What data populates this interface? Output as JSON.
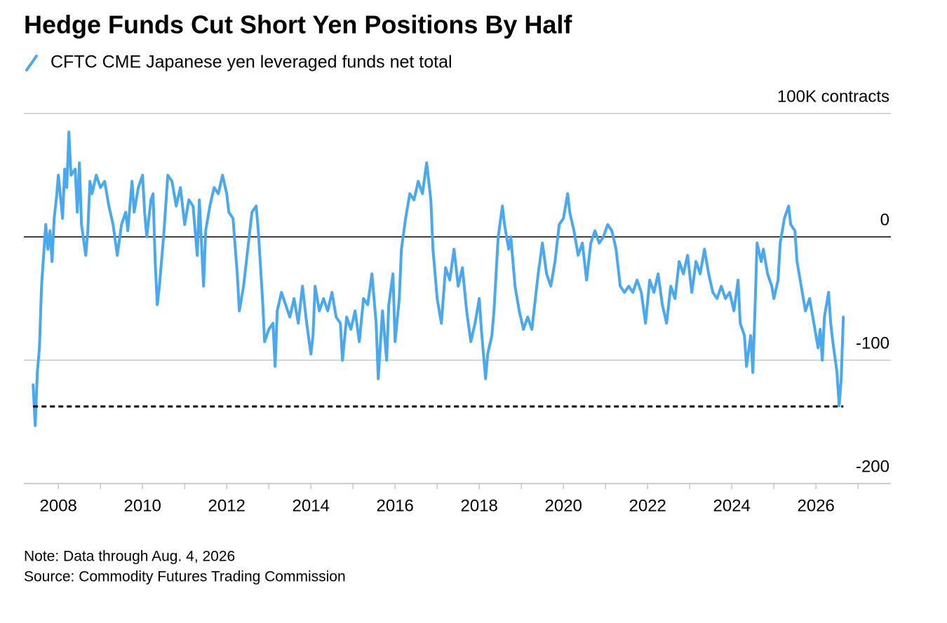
{
  "chart_data": {
    "type": "line",
    "title": "Hedge Funds Cut Short Yen Positions By Half",
    "note": "Note: Data through Aug. 4, 2026",
    "source": "Source: Commodity Futures Trading Commission",
    "xlim": [
      2007.18,
      2027.78
    ],
    "xticks": [
      2008,
      2010,
      2012,
      2014,
      2016,
      2018,
      2020,
      2022,
      2024,
      2026
    ],
    "xminor_ticks": [
      2009,
      2011,
      2013,
      2015,
      2017,
      2019,
      2021,
      2023,
      2025,
      2027
    ],
    "ylim": [
      -200,
      100
    ],
    "yticks": [
      {
        "value": 100,
        "label": "100K contracts"
      },
      0,
      -100,
      -200
    ],
    "grid": true,
    "reference_line": -137.5,
    "x": [
      2007.4,
      2007.45,
      2007.5,
      2007.55,
      2007.6,
      2007.7,
      2007.75,
      2007.8,
      2007.85,
      2007.9,
      2007.95,
      2008.0,
      2008.1,
      2008.15,
      2008.2,
      2008.25,
      2008.3,
      2008.4,
      2008.45,
      2008.5,
      2008.55,
      2008.65,
      2008.7,
      2008.75,
      2008.8,
      2008.9,
      2009.0,
      2009.1,
      2009.2,
      2009.3,
      2009.4,
      2009.5,
      2009.6,
      2009.65,
      2009.75,
      2009.8,
      2009.9,
      2010.0,
      2010.05,
      2010.1,
      2010.2,
      2010.25,
      2010.3,
      2010.35,
      2010.4,
      2010.5,
      2010.6,
      2010.7,
      2010.8,
      2010.9,
      2011.0,
      2011.1,
      2011.2,
      2011.3,
      2011.35,
      2011.45,
      2011.5,
      2011.6,
      2011.7,
      2011.8,
      2011.9,
      2012.0,
      2012.05,
      2012.15,
      2012.25,
      2012.3,
      2012.4,
      2012.5,
      2012.6,
      2012.7,
      2012.75,
      2012.85,
      2012.9,
      2013.0,
      2013.1,
      2013.15,
      2013.2,
      2013.3,
      2013.4,
      2013.5,
      2013.6,
      2013.7,
      2013.8,
      2013.9,
      2014.0,
      2014.05,
      2014.1,
      2014.2,
      2014.3,
      2014.4,
      2014.5,
      2014.6,
      2014.7,
      2014.75,
      2014.85,
      2014.95,
      2015.05,
      2015.15,
      2015.25,
      2015.35,
      2015.45,
      2015.55,
      2015.6,
      2015.7,
      2015.8,
      2015.85,
      2015.95,
      2016.0,
      2016.1,
      2016.15,
      2016.25,
      2016.35,
      2016.45,
      2016.55,
      2016.65,
      2016.75,
      2016.85,
      2016.9,
      2017.0,
      2017.1,
      2017.2,
      2017.3,
      2017.4,
      2017.5,
      2017.6,
      2017.7,
      2017.8,
      2017.9,
      2018.0,
      2018.05,
      2018.15,
      2018.2,
      2018.3,
      2018.35,
      2018.45,
      2018.55,
      2018.6,
      2018.7,
      2018.75,
      2018.85,
      2018.9,
      2018.95,
      2019.05,
      2019.15,
      2019.25,
      2019.4,
      2019.5,
      2019.6,
      2019.7,
      2019.8,
      2019.9,
      2020.0,
      2020.1,
      2020.15,
      2020.25,
      2020.35,
      2020.45,
      2020.55,
      2020.65,
      2020.75,
      2020.85,
      2020.95,
      2021.05,
      2021.15,
      2021.25,
      2021.35,
      2021.45,
      2021.55,
      2021.65,
      2021.75,
      2021.85,
      2021.95,
      2022.05,
      2022.15,
      2022.25,
      2022.35,
      2022.45,
      2022.55,
      2022.65,
      2022.75,
      2022.85,
      2022.95,
      2023.05,
      2023.15,
      2023.25,
      2023.35,
      2023.45,
      2023.55,
      2023.65,
      2023.75,
      2023.85,
      2023.95,
      2024.05,
      2024.15,
      2024.2,
      2024.3,
      2024.35,
      2024.45,
      2024.5,
      2024.55,
      2024.6,
      2024.7,
      2024.75,
      2024.85,
      2024.95,
      2025.0,
      2025.1,
      2025.15,
      2025.25,
      2025.35,
      2025.4,
      2025.5,
      2025.55,
      2025.65,
      2025.75,
      2025.85,
      2025.95,
      2026.05,
      2026.1,
      2026.15,
      2026.2,
      2026.3,
      2026.35,
      2026.4,
      2026.5,
      2026.55,
      2026.6,
      2026.65
    ],
    "series": [
      {
        "name": "CFTC CME Japanese yen leveraged funds net total",
        "color": "#4aa8ee",
        "values": [
          -120,
          -153,
          -110,
          -90,
          -40,
          10,
          -10,
          5,
          -20,
          15,
          30,
          50,
          15,
          55,
          40,
          85,
          50,
          55,
          20,
          60,
          10,
          -15,
          5,
          45,
          35,
          50,
          40,
          45,
          25,
          10,
          -15,
          10,
          20,
          5,
          45,
          20,
          40,
          50,
          20,
          0,
          30,
          35,
          -20,
          -55,
          -40,
          0,
          50,
          45,
          25,
          40,
          10,
          30,
          25,
          -15,
          30,
          -40,
          5,
          25,
          40,
          35,
          50,
          35,
          20,
          15,
          -30,
          -60,
          -40,
          -10,
          20,
          25,
          5,
          -50,
          -85,
          -75,
          -70,
          -105,
          -60,
          -45,
          -55,
          -65,
          -50,
          -70,
          -40,
          -70,
          -95,
          -80,
          -40,
          -60,
          -50,
          -60,
          -45,
          -65,
          -70,
          -100,
          -65,
          -75,
          -60,
          -85,
          -50,
          -55,
          -30,
          -70,
          -115,
          -60,
          -100,
          -55,
          -30,
          -85,
          -50,
          -10,
          15,
          35,
          30,
          45,
          35,
          60,
          30,
          -10,
          -50,
          -70,
          -25,
          -35,
          -10,
          -40,
          -25,
          -60,
          -85,
          -70,
          -50,
          -75,
          -115,
          -95,
          -80,
          -60,
          0,
          25,
          10,
          -10,
          0,
          -40,
          -50,
          -60,
          -75,
          -65,
          -75,
          -30,
          -5,
          -30,
          -40,
          -20,
          10,
          15,
          35,
          20,
          5,
          -15,
          -5,
          -35,
          -5,
          5,
          -5,
          0,
          10,
          5,
          -10,
          -40,
          -45,
          -40,
          -45,
          -35,
          -45,
          -70,
          -35,
          -45,
          -30,
          -55,
          -70,
          -40,
          -50,
          -20,
          -30,
          -15,
          -45,
          -20,
          -30,
          -10,
          -30,
          -45,
          -50,
          -40,
          -50,
          -45,
          -60,
          -35,
          -70,
          -80,
          -105,
          -80,
          -110,
          -60,
          -5,
          -20,
          -10,
          -30,
          -40,
          -50,
          -35,
          -5,
          15,
          25,
          10,
          5,
          -20,
          -40,
          -60,
          -50,
          -70,
          -90,
          -75,
          -100,
          -65,
          -45,
          -70,
          -85,
          -110,
          -137,
          -115,
          -65
        ]
      }
    ]
  }
}
